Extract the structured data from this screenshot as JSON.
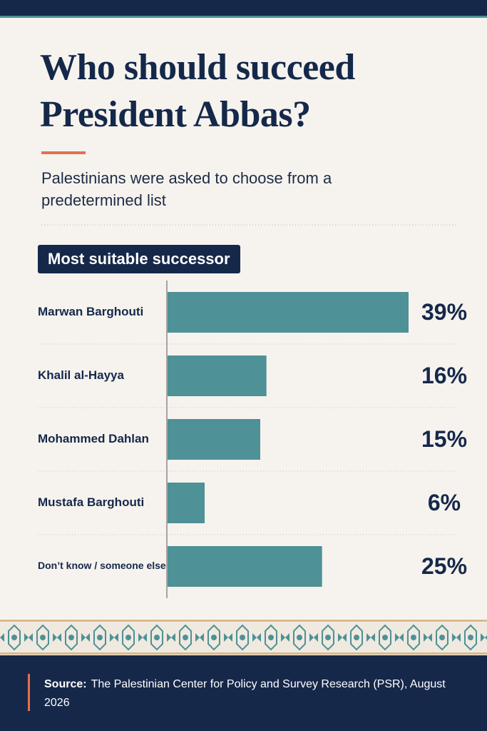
{
  "chart_data": {
    "type": "bar",
    "orientation": "horizontal",
    "title": "Who should succeed President Abbas?",
    "subtitle": "Palestinians were asked to choose from a predetermined list",
    "section_label": "Most suitable successor",
    "categories": [
      "Marwan Barghouti",
      "Khalil al-Hayya",
      "Mohammed Dahlan",
      "Mustafa Barghouti",
      "Don’t know / someone else"
    ],
    "values": [
      39,
      16,
      15,
      6,
      25
    ],
    "value_labels": [
      "39%",
      "16%",
      "15%",
      "6%",
      "25%"
    ],
    "color": "#4e9196",
    "source_label": "Source:",
    "source_text": "The Palestinian Center for Policy and Survey Research (PSR), August 2026"
  }
}
